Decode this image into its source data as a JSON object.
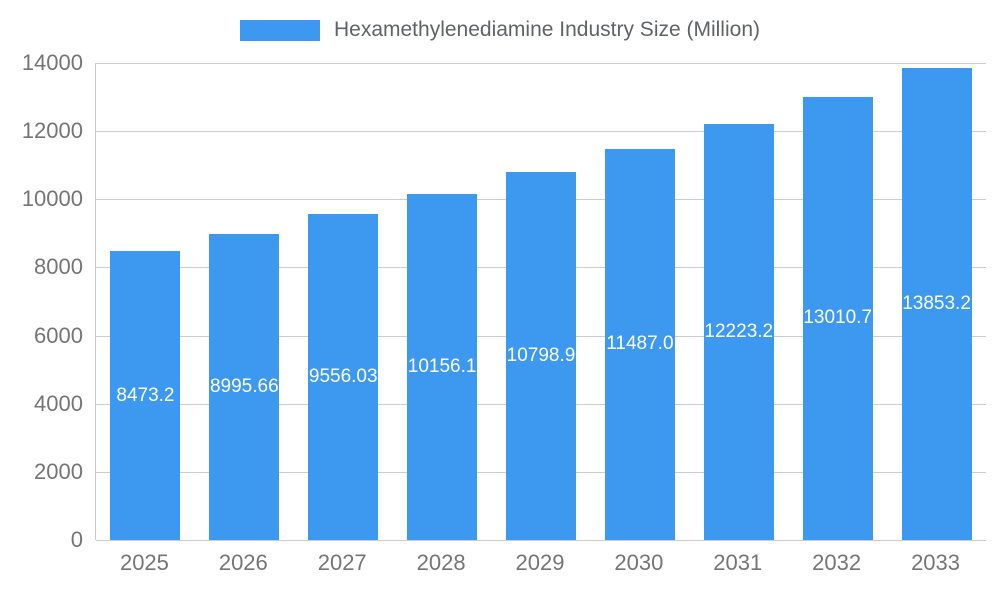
{
  "chart_data": {
    "type": "bar",
    "title": "Hexamethylenediamine Industry Size (Million)",
    "categories": [
      "2025",
      "2026",
      "2027",
      "2028",
      "2029",
      "2030",
      "2031",
      "2032",
      "2033"
    ],
    "values": [
      8473.2,
      8995.66,
      9556.03,
      10156.1,
      10798.9,
      11487.0,
      12223.2,
      13010.7,
      13853.2
    ],
    "value_labels": [
      "8473.2",
      "8995.66",
      "9556.03",
      "10156.1",
      "10798.9",
      "11487.0",
      "12223.2",
      "13010.7",
      "13853.2"
    ],
    "xlabel": "",
    "ylabel": "",
    "ylim": [
      0,
      14000
    ],
    "yticks": [
      0,
      2000,
      4000,
      6000,
      8000,
      10000,
      12000,
      14000
    ],
    "grid": true,
    "legend_position": "top",
    "colors": {
      "bar": "#3d99f0",
      "label_text": "#ffffff",
      "axis_text": "#757575",
      "gridline": "#cccccc",
      "title_text": "#5f6368"
    }
  }
}
